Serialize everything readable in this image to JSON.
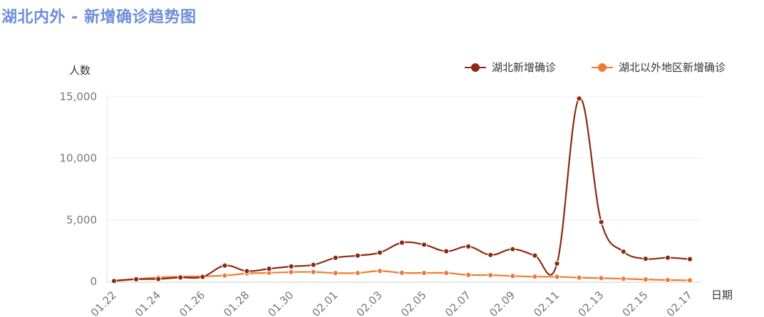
{
  "title": "湖北内外 - 新增确诊趋势图",
  "chart_data": {
    "type": "line",
    "title": "湖北内外 - 新增确诊趋势图",
    "ylabel": "人数",
    "xlabel": "日期",
    "ylim": [
      0,
      15000
    ],
    "yticks": [
      0,
      5000,
      10000,
      15000
    ],
    "ytick_labels": [
      "0",
      "5,000",
      "10,000",
      "15,000"
    ],
    "grid": true,
    "legend_position": "top-right",
    "categories": [
      "01.22",
      "01.23",
      "01.24",
      "01.25",
      "01.26",
      "01.27",
      "01.28",
      "01.29",
      "01.30",
      "01.31",
      "02.01",
      "02.02",
      "02.03",
      "02.04",
      "02.05",
      "02.06",
      "02.07",
      "02.08",
      "02.09",
      "02.10",
      "02.11",
      "02.12",
      "02.13",
      "02.14",
      "02.15",
      "02.16",
      "02.17"
    ],
    "xtick_labels": [
      "01.22",
      "01.24",
      "01.26",
      "01.28",
      "01.30",
      "02.01",
      "02.03",
      "02.05",
      "02.07",
      "02.09",
      "02.11",
      "02.13",
      "02.15",
      "02.17"
    ],
    "series": [
      {
        "name": "湖北新增确诊",
        "color": "#8b2a12",
        "values": [
          40,
          180,
          200,
          320,
          370,
          1290,
          840,
          1030,
          1220,
          1350,
          1920,
          2100,
          2340,
          3150,
          2990,
          2450,
          2840,
          2150,
          2620,
          2100,
          1450,
          14850,
          4820,
          2420,
          1840,
          1930,
          1810
        ]
      },
      {
        "name": "湖北以外地区新增确诊",
        "color": "#ef7a30",
        "values": [
          80,
          200,
          320,
          400,
          420,
          480,
          650,
          700,
          760,
          770,
          680,
          690,
          850,
          700,
          690,
          690,
          530,
          510,
          440,
          390,
          380,
          310,
          270,
          220,
          160,
          120,
          90
        ]
      }
    ]
  }
}
